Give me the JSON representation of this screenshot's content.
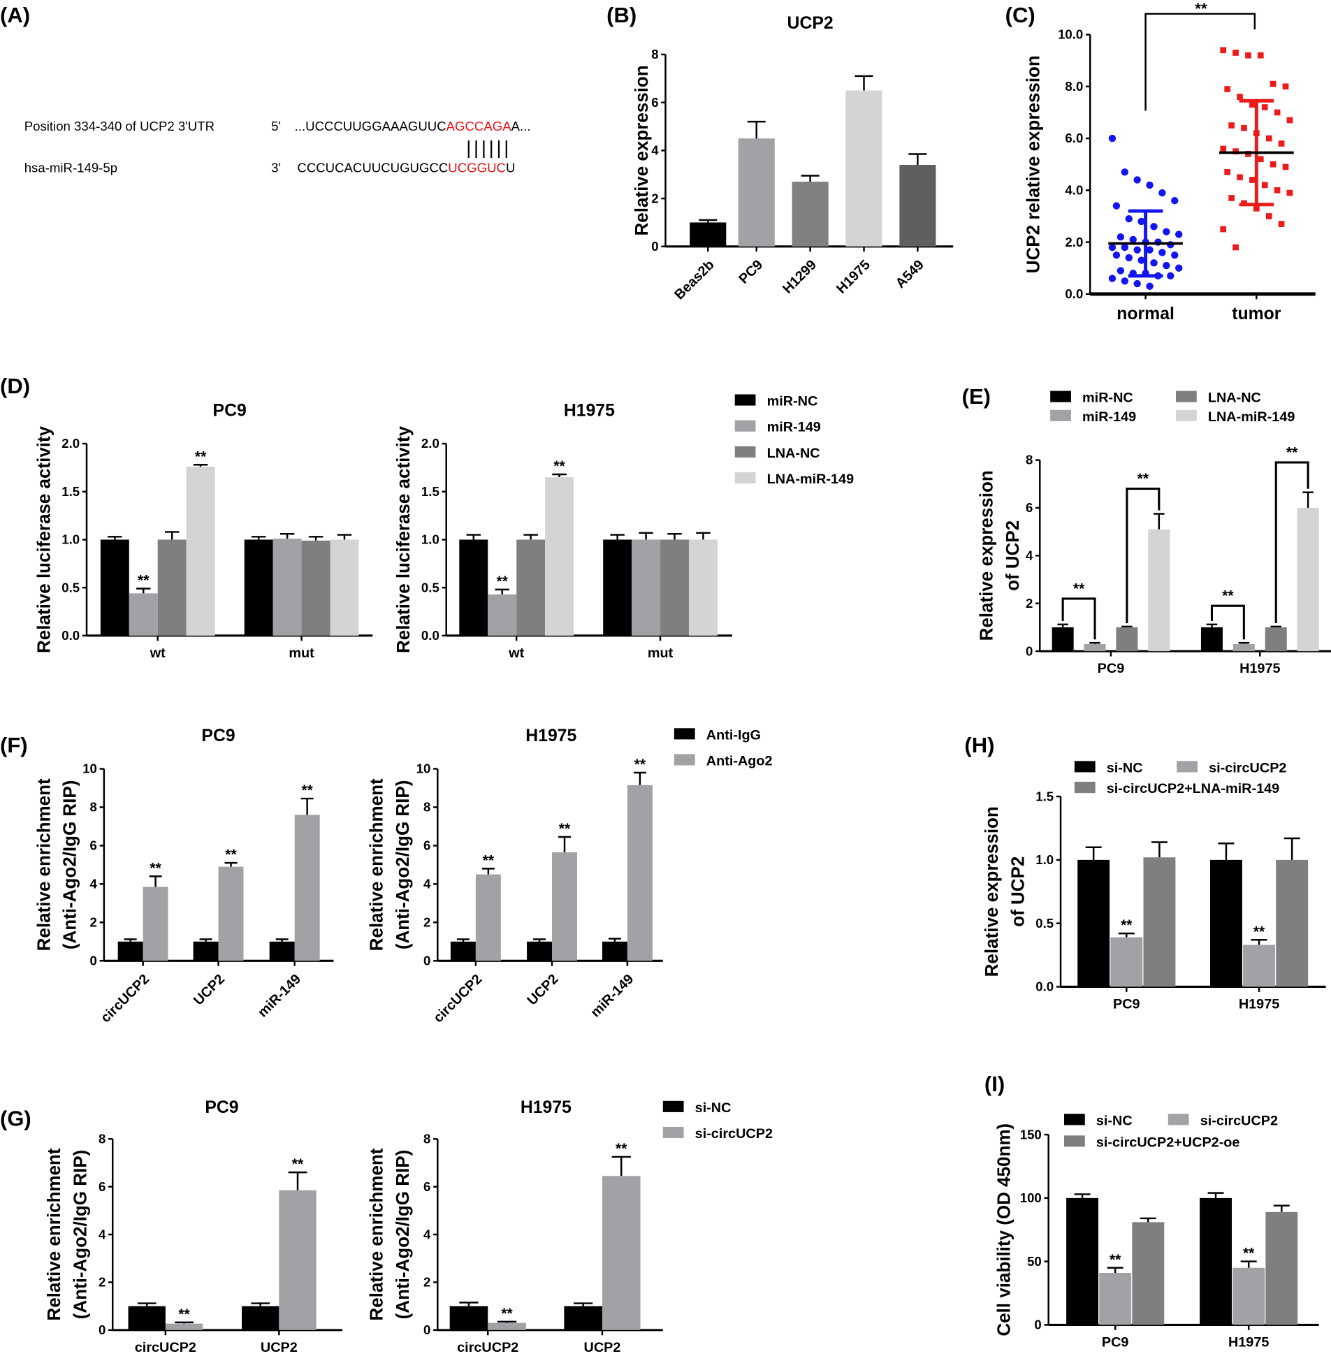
{
  "panel_labels": [
    "(A)",
    "(B)",
    "(C)",
    "(D)",
    "(E)",
    "(F)",
    "(H)",
    "(G)",
    "(I)"
  ],
  "panel_a": {
    "row1_label": "Position 334-340 of UCP2 3'UTR",
    "row1_end": "5'",
    "row1_seq_pre": "...UCCCUUGGAAAGUUC",
    "row1_seq_red": "AGCCAGA",
    "row1_seq_post": "A...",
    "pairing": "||||||",
    "row2_label": "hsa-miR-149-5p",
    "row2_end": "3'",
    "row2_seq_pre": "CCCUCACUUCUGUGCC",
    "row2_seq_red": "UCGGUC",
    "row2_seq_post": "U",
    "red_color": "#e8141b"
  },
  "chart_data": [
    {
      "id": "B",
      "type": "bar",
      "title": "UCP2",
      "ylabel": [
        "Relative expression"
      ],
      "ylim": [
        0,
        8
      ],
      "yticks": [
        "0",
        "2",
        "4",
        "6",
        "8"
      ],
      "categories": [
        "Beas2b",
        "PC9",
        "H1299",
        "H1975",
        "A549"
      ],
      "series": [
        {
          "name": "UCP2",
          "colors": [
            "#000000",
            "#a1a1a6",
            "#808080",
            "#d4d4d4",
            "#5f5f5f"
          ],
          "values": [
            [
              1.0
            ],
            [
              4.5
            ],
            [
              2.7
            ],
            [
              6.5
            ],
            [
              3.4
            ]
          ],
          "errors": [
            [
              0.1
            ],
            [
              0.7
            ],
            [
              0.25
            ],
            [
              0.6
            ],
            [
              0.45
            ]
          ]
        }
      ],
      "single_per_category": true
    },
    {
      "id": "C",
      "type": "scatter",
      "title": "",
      "ylabel": [
        "UCP2 relative expression"
      ],
      "ylim": [
        0,
        10
      ],
      "yticks": [
        "0.0",
        "2.0",
        "4.0",
        "6.0",
        "8.0",
        "10.0"
      ],
      "categories": [
        "normal",
        "tumor"
      ],
      "series": [
        {
          "name": "normal",
          "color": "#1414f0",
          "mean": 1.95,
          "sd": 1.25,
          "values": [
            6.0,
            4.7,
            4.4,
            4.2,
            3.9,
            3.6,
            3.4,
            2.9,
            2.8,
            2.6,
            2.4,
            2.3,
            2.2,
            2.1,
            2.0,
            2.0,
            1.9,
            1.8,
            1.8,
            1.7,
            1.7,
            1.6,
            1.5,
            1.5,
            1.4,
            1.3,
            1.2,
            1.1,
            1.0,
            0.9,
            0.8,
            0.8,
            0.7,
            0.7,
            0.6,
            0.5,
            0.4,
            0.3
          ]
        },
        {
          "name": "tumor",
          "color": "#ec1a1a",
          "mean": 5.45,
          "sd": 2.0,
          "values": [
            9.4,
            9.3,
            9.2,
            9.2,
            8.1,
            8.0,
            7.9,
            7.6,
            7.3,
            7.2,
            7.0,
            6.7,
            6.5,
            6.4,
            6.2,
            6.0,
            5.8,
            5.6,
            5.5,
            5.4,
            5.2,
            5.0,
            4.9,
            4.7,
            4.5,
            4.4,
            4.2,
            4.0,
            3.9,
            3.7,
            3.5,
            3.3,
            3.0,
            2.7,
            2.5,
            1.8
          ]
        }
      ],
      "significance": {
        "text": "**",
        "between": [
          "normal",
          "tumor"
        ]
      }
    },
    {
      "id": "D-PC9",
      "type": "bar",
      "title": "PC9",
      "ylabel": [
        "Relative luciferase activity"
      ],
      "ylim": [
        0,
        2
      ],
      "yticks": [
        "0.0",
        "0.5",
        "1.0",
        "1.5",
        "2.0"
      ],
      "categories": [
        "wt",
        "mut"
      ],
      "series": [
        {
          "name": "miR-NC",
          "color": "#000000",
          "values": [
            1.0,
            1.0
          ],
          "errors": [
            0.03,
            0.03
          ]
        },
        {
          "name": "miR-149",
          "color": "#a1a1a6",
          "values": [
            0.44,
            1.01
          ],
          "errors": [
            0.05,
            0.05
          ]
        },
        {
          "name": "LNA-NC",
          "color": "#7f7f7f",
          "values": [
            1.0,
            0.99
          ],
          "errors": [
            0.08,
            0.04
          ]
        },
        {
          "name": "LNA-miR-149",
          "color": "#d4d4d4",
          "values": [
            1.76,
            1.0
          ],
          "errors": [
            0.02,
            0.05
          ]
        }
      ],
      "stars": [
        {
          "cat": 0,
          "series": 1,
          "text": "**"
        },
        {
          "cat": 0,
          "series": 3,
          "text": "**"
        }
      ]
    },
    {
      "id": "D-H1975",
      "type": "bar",
      "title": "H1975",
      "ylabel": [
        "Relative luciferase activity"
      ],
      "ylim": [
        0,
        2
      ],
      "yticks": [
        "0.0",
        "0.5",
        "1.0",
        "1.5",
        "2.0"
      ],
      "categories": [
        "wt",
        "mut"
      ],
      "series": [
        {
          "name": "miR-NC",
          "color": "#000000",
          "values": [
            1.0,
            1.0
          ],
          "errors": [
            0.05,
            0.05
          ]
        },
        {
          "name": "miR-149",
          "color": "#a1a1a6",
          "values": [
            0.43,
            1.0
          ],
          "errors": [
            0.05,
            0.07
          ]
        },
        {
          "name": "LNA-NC",
          "color": "#7f7f7f",
          "values": [
            1.0,
            1.0
          ],
          "errors": [
            0.05,
            0.06
          ]
        },
        {
          "name": "LNA-miR-149",
          "color": "#d4d4d4",
          "values": [
            1.65,
            1.0
          ],
          "errors": [
            0.03,
            0.07
          ]
        }
      ],
      "stars": [
        {
          "cat": 0,
          "series": 1,
          "text": "**"
        },
        {
          "cat": 0,
          "series": 3,
          "text": "**"
        }
      ],
      "legend": true
    },
    {
      "id": "E",
      "type": "bar",
      "title": "",
      "ylabel": [
        "Relative expression",
        "of UCP2"
      ],
      "ylim": [
        0,
        8
      ],
      "yticks": [
        "0",
        "2",
        "4",
        "6",
        "8"
      ],
      "categories": [
        "PC9",
        "H1975"
      ],
      "series": [
        {
          "name": "miR-NC",
          "color": "#000000",
          "values": [
            1.0,
            1.0
          ],
          "errors": [
            0.12,
            0.12
          ]
        },
        {
          "name": "miR-149",
          "color": "#a1a1a6",
          "values": [
            0.3,
            0.3
          ],
          "errors": [
            0.05,
            0.05
          ]
        },
        {
          "name": "LNA-NC",
          "color": "#7f7f7f",
          "values": [
            1.0,
            1.0
          ],
          "errors": [
            0.03,
            0.03
          ]
        },
        {
          "name": "LNA-miR-149",
          "color": "#d4d4d4",
          "values": [
            5.1,
            6.0
          ],
          "errors": [
            0.65,
            0.65
          ]
        }
      ],
      "brackets": [
        {
          "cat": 0,
          "a": 0,
          "b": 1,
          "level": 2.2,
          "text": "**"
        },
        {
          "cat": 0,
          "a": 2,
          "b": 3,
          "level": 6.8,
          "text": "**"
        },
        {
          "cat": 1,
          "a": 0,
          "b": 1,
          "level": 1.9,
          "text": "**"
        },
        {
          "cat": 1,
          "a": 2,
          "b": 3,
          "level": 7.9,
          "text": "**"
        }
      ],
      "legend": true
    },
    {
      "id": "F-PC9",
      "type": "bar",
      "title": "PC9",
      "ylabel": [
        "Relative enrichment",
        "(Anti-Ago2/IgG RIP)"
      ],
      "ylim": [
        0,
        10
      ],
      "yticks": [
        "0",
        "2",
        "4",
        "6",
        "8",
        "10"
      ],
      "categories": [
        "circUCP2",
        "UCP2",
        "miR-149"
      ],
      "series": [
        {
          "name": "Anti-IgG",
          "color": "#000000",
          "values": [
            1.0,
            1.0,
            1.0
          ],
          "errors": [
            0.12,
            0.12,
            0.12
          ]
        },
        {
          "name": "Anti-Ago2",
          "color": "#a1a1a6",
          "values": [
            3.85,
            4.9,
            7.6
          ],
          "errors": [
            0.55,
            0.2,
            0.85
          ]
        }
      ],
      "stars": [
        {
          "cat": 0,
          "series": 1,
          "text": "**"
        },
        {
          "cat": 1,
          "series": 1,
          "text": "**"
        },
        {
          "cat": 2,
          "series": 1,
          "text": "**"
        }
      ]
    },
    {
      "id": "F-H1975",
      "type": "bar",
      "title": "H1975",
      "ylabel": [
        "Relative enrichment",
        "(Anti-Ago2/IgG RIP)"
      ],
      "ylim": [
        0,
        10
      ],
      "yticks": [
        "0",
        "2",
        "4",
        "6",
        "8",
        "10"
      ],
      "categories": [
        "circUCP2",
        "UCP2",
        "miR-149"
      ],
      "series": [
        {
          "name": "Anti-IgG",
          "color": "#000000",
          "values": [
            1.0,
            1.0,
            1.0
          ],
          "errors": [
            0.12,
            0.12,
            0.15
          ]
        },
        {
          "name": "Anti-Ago2",
          "color": "#a1a1a6",
          "values": [
            4.5,
            5.65,
            9.15
          ],
          "errors": [
            0.3,
            0.8,
            0.65
          ]
        }
      ],
      "stars": [
        {
          "cat": 0,
          "series": 1,
          "text": "**"
        },
        {
          "cat": 1,
          "series": 1,
          "text": "**"
        },
        {
          "cat": 2,
          "series": 1,
          "text": "**"
        }
      ],
      "legend": true
    },
    {
      "id": "H",
      "type": "bar",
      "title": "",
      "ylabel": [
        "Relative expression",
        "of UCP2"
      ],
      "ylim": [
        0,
        1.5
      ],
      "yticks": [
        "0.0",
        "0.5",
        "1.0",
        "1.5"
      ],
      "categories": [
        "PC9",
        "H1975"
      ],
      "series": [
        {
          "name": "si-NC",
          "color": "#000000",
          "values": [
            1.0,
            1.0
          ],
          "errors": [
            0.1,
            0.13
          ]
        },
        {
          "name": "si-circUCP2",
          "color": "#a1a1a6",
          "values": [
            0.39,
            0.33
          ],
          "errors": [
            0.03,
            0.04
          ]
        },
        {
          "name": "si-circUCP2+LNA-miR-149",
          "color": "#7f7f7f",
          "values": [
            1.02,
            1.0
          ],
          "errors": [
            0.12,
            0.17
          ]
        }
      ],
      "stars": [
        {
          "cat": 0,
          "series": 1,
          "text": "**"
        },
        {
          "cat": 1,
          "series": 1,
          "text": "**"
        }
      ],
      "legend": true
    },
    {
      "id": "G-PC9",
      "type": "bar",
      "title": "PC9",
      "ylabel": [
        "Relative enrichment",
        "(Anti-Ago2/IgG RIP)"
      ],
      "ylim": [
        0,
        8
      ],
      "yticks": [
        "0",
        "2",
        "4",
        "6",
        "8"
      ],
      "categories": [
        "circUCP2",
        "UCP2"
      ],
      "series": [
        {
          "name": "si-NC",
          "color": "#000000",
          "values": [
            1.0,
            1.0
          ],
          "errors": [
            0.12,
            0.12
          ]
        },
        {
          "name": "si-circUCP2",
          "color": "#a1a1a6",
          "values": [
            0.27,
            5.85
          ],
          "errors": [
            0.05,
            0.75
          ]
        }
      ],
      "stars": [
        {
          "cat": 0,
          "series": 1,
          "text": "**"
        },
        {
          "cat": 1,
          "series": 1,
          "text": "**"
        }
      ]
    },
    {
      "id": "G-H1975",
      "type": "bar",
      "title": "H1975",
      "ylabel": [
        "Relative enrichment",
        "(Anti-Ago2/IgG RIP)"
      ],
      "ylim": [
        0,
        8
      ],
      "yticks": [
        "0",
        "2",
        "4",
        "6",
        "8"
      ],
      "categories": [
        "circUCP2",
        "UCP2"
      ],
      "series": [
        {
          "name": "si-NC",
          "color": "#000000",
          "values": [
            1.0,
            1.0
          ],
          "errors": [
            0.15,
            0.12
          ]
        },
        {
          "name": "si-circUCP2",
          "color": "#a1a1a6",
          "values": [
            0.3,
            6.45
          ],
          "errors": [
            0.05,
            0.8
          ]
        }
      ],
      "stars": [
        {
          "cat": 0,
          "series": 1,
          "text": "**"
        },
        {
          "cat": 1,
          "series": 1,
          "text": "**"
        }
      ],
      "legend": true
    },
    {
      "id": "I",
      "type": "bar",
      "title": "",
      "ylabel": [
        "Cell viability (OD 450nm)"
      ],
      "ylim": [
        0,
        150
      ],
      "yticks": [
        "0",
        "50",
        "100",
        "150"
      ],
      "categories": [
        "PC9",
        "H1975"
      ],
      "series": [
        {
          "name": "si-NC",
          "color": "#000000",
          "values": [
            100,
            100
          ],
          "errors": [
            3,
            4
          ]
        },
        {
          "name": "si-circUCP2",
          "color": "#a1a1a6",
          "values": [
            41,
            45
          ],
          "errors": [
            4,
            5
          ]
        },
        {
          "name": "si-circUCP2+UCP2-oe",
          "color": "#7f7f7f",
          "values": [
            81,
            89
          ],
          "errors": [
            3,
            5
          ]
        }
      ],
      "stars": [
        {
          "cat": 0,
          "series": 1,
          "text": "**"
        },
        {
          "cat": 1,
          "series": 1,
          "text": "**"
        }
      ],
      "legend": true
    }
  ]
}
